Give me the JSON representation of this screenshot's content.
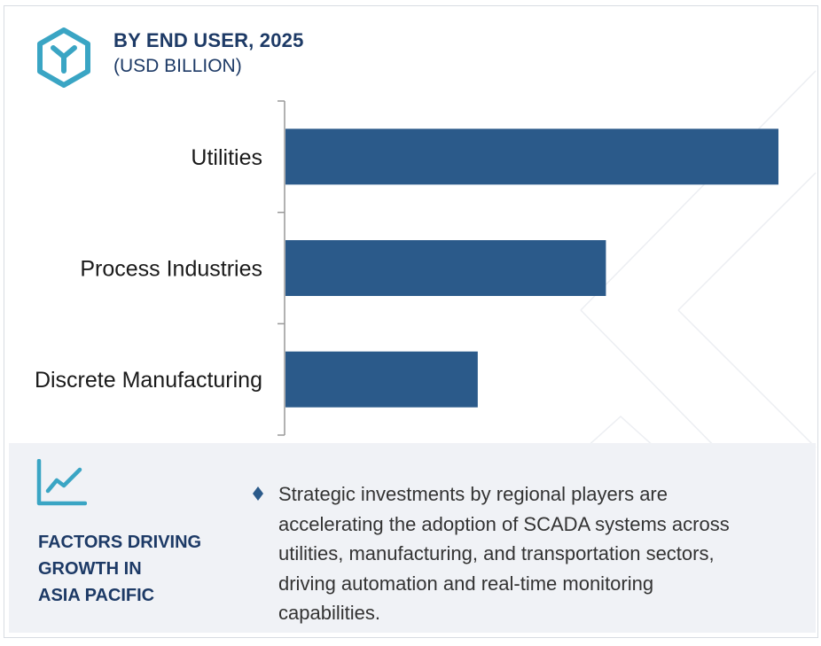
{
  "header": {
    "title": "BY END USER, 2025",
    "subtitle": "(USD BILLION)",
    "icon": "hexagon-y-icon"
  },
  "colors": {
    "bar": "#2b5a8a",
    "accent_teal": "#3aa5c4",
    "title_navy": "#1d3a66",
    "panel_bg": "#f0f2f6",
    "axis": "#999999"
  },
  "chart_data": {
    "type": "bar",
    "orientation": "horizontal",
    "categories": [
      "Utilities",
      "Process Industries",
      "Discrete Manufacturing"
    ],
    "values": [
      1.0,
      0.65,
      0.39
    ],
    "value_scale": "relative",
    "title": "BY END USER, 2025",
    "subtitle": "(USD BILLION)",
    "xlabel": "",
    "ylabel": "",
    "xlim": [
      0,
      1.0
    ],
    "grid": false,
    "legend": "none"
  },
  "factors": {
    "icon": "line-chart-trend-icon",
    "title_lines": [
      "FACTORS DRIVING",
      "GROWTH IN",
      "ASIA PACIFIC"
    ],
    "bullet_icon": "diamond-bullet-icon",
    "bullet_lines": [
      "Strategic investments by regional players are",
      "accelerating the adoption of SCADA systems across",
      "utilities, manufacturing, and transportation sectors,",
      "driving automation and real-time monitoring",
      "capabilities."
    ]
  }
}
